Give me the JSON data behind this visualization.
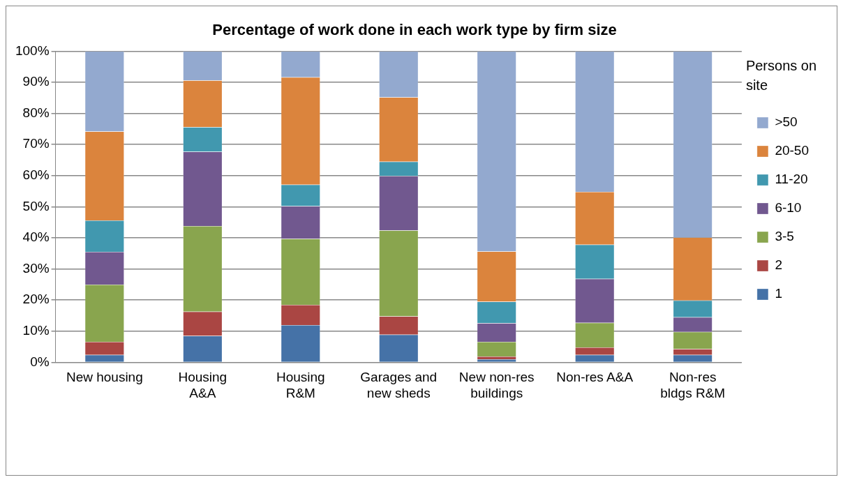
{
  "chart_data": {
    "type": "bar",
    "stacked": true,
    "title": "Percentage of work done in each work type by firm size",
    "legend_title": "Persons on site",
    "legend": "right",
    "grid": "y",
    "categories": [
      "New housing",
      "Housing A&A",
      "Housing R&M",
      "Garages and new sheds",
      "New non-res buildings",
      "Non-res A&A",
      "Non-res bldgs R&M"
    ],
    "ylim": [
      0,
      100
    ],
    "yticks": [
      {
        "value": 0,
        "label": "0%"
      },
      {
        "value": 10,
        "label": "10%"
      },
      {
        "value": 20,
        "label": "20%"
      },
      {
        "value": 30,
        "label": "30%"
      },
      {
        "value": 40,
        "label": "40%"
      },
      {
        "value": 50,
        "label": "50%"
      },
      {
        "value": 60,
        "label": "60%"
      },
      {
        "value": 70,
        "label": "70%"
      },
      {
        "value": 80,
        "label": "80%"
      },
      {
        "value": 90,
        "label": "90%"
      },
      {
        "value": 100,
        "label": "100%"
      }
    ],
    "series": [
      {
        "name": "1",
        "color": "#4572a7",
        "values": [
          2.4,
          8.5,
          12.0,
          8.9,
          1.0,
          2.4,
          2.4
        ]
      },
      {
        "name": "2",
        "color": "#aa4643",
        "values": [
          4.2,
          7.8,
          6.5,
          5.9,
          0.9,
          2.4,
          1.9
        ]
      },
      {
        "name": "3-5",
        "color": "#89a54e",
        "values": [
          18.4,
          27.5,
          21.2,
          27.6,
          4.7,
          7.9,
          5.5
        ]
      },
      {
        "name": "6-10",
        "color": "#71588f",
        "values": [
          10.5,
          23.9,
          10.5,
          17.5,
          6.0,
          14.1,
          4.7
        ]
      },
      {
        "name": "11-20",
        "color": "#4198af",
        "values": [
          10.1,
          7.9,
          6.9,
          4.6,
          6.9,
          11.0,
          5.4
        ]
      },
      {
        "name": "20-50",
        "color": "#db843d",
        "values": [
          28.6,
          15.0,
          34.5,
          20.7,
          16.1,
          17.0,
          20.2
        ]
      },
      {
        "name": ">50",
        "color": "#93a9cf",
        "values": [
          25.8,
          9.4,
          8.4,
          14.8,
          64.4,
          45.2,
          59.9
        ]
      }
    ]
  }
}
